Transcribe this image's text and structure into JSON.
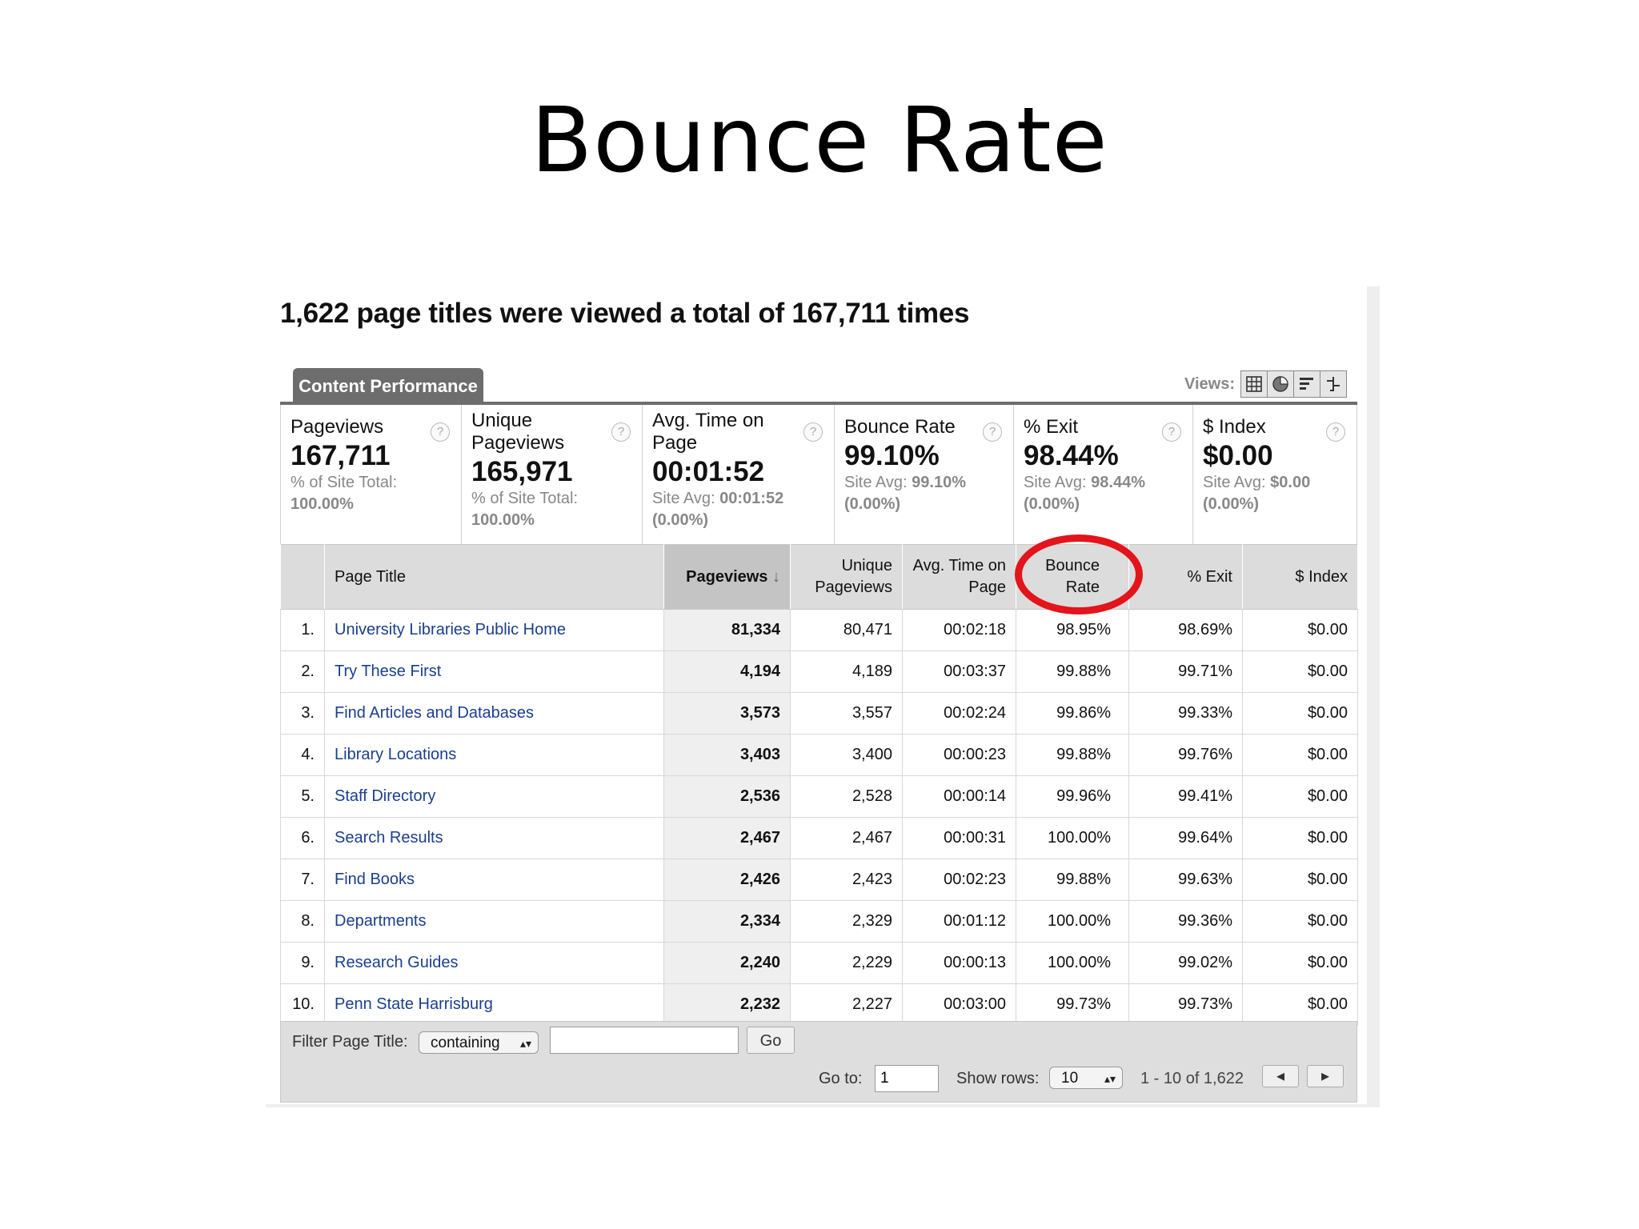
{
  "slide": {
    "title": "Bounce Rate"
  },
  "report": {
    "headline": "1,622 page titles were viewed a total of 167,711 times",
    "tab_label": "Content Performance",
    "views_label": "Views:",
    "view_icons": [
      "table-view-icon",
      "pie-view-icon",
      "bar-view-icon",
      "pivot-view-icon"
    ]
  },
  "summary": [
    {
      "label": "Pageviews",
      "value": "167,711",
      "sub1": "% of Site Total:",
      "sub2": "100.00%"
    },
    {
      "label": "Unique Pageviews",
      "value": "165,971",
      "sub1": "% of Site Total:",
      "sub2": "100.00%"
    },
    {
      "label": "Avg. Time on Page",
      "value": "00:01:52",
      "sub1": "Site Avg:",
      "sub1b": "00:01:52",
      "sub2": "(0.00%)"
    },
    {
      "label": "Bounce Rate",
      "value": "99.10%",
      "sub1": "Site Avg:",
      "sub1b": "99.10%",
      "sub2": "(0.00%)"
    },
    {
      "label": "% Exit",
      "value": "98.44%",
      "sub1": "Site Avg:",
      "sub1b": "98.44%",
      "sub2": "(0.00%)"
    },
    {
      "label": "$ Index",
      "value": "$0.00",
      "sub1": "Site Avg:",
      "sub1b": "$0.00",
      "sub2": "(0.00%)"
    }
  ],
  "help_glyph": "?",
  "table": {
    "headers": {
      "page_title": "Page Title",
      "pageviews": "Pageviews",
      "sort_arrow": "↓",
      "unique_pageviews": "Unique Pageviews",
      "avg_time": "Avg. Time on Page",
      "bounce_rate": "Bounce Rate",
      "exit": "% Exit",
      "index": "$ Index"
    },
    "rows": [
      {
        "n": "1.",
        "title": "University Libraries Public Home",
        "pv": "81,334",
        "upv": "80,471",
        "time": "00:02:18",
        "bounce": "98.95%",
        "exit": "98.69%",
        "index": "$0.00"
      },
      {
        "n": "2.",
        "title": "Try These First",
        "pv": "4,194",
        "upv": "4,189",
        "time": "00:03:37",
        "bounce": "99.88%",
        "exit": "99.71%",
        "index": "$0.00"
      },
      {
        "n": "3.",
        "title": "Find Articles and Databases",
        "pv": "3,573",
        "upv": "3,557",
        "time": "00:02:24",
        "bounce": "99.86%",
        "exit": "99.33%",
        "index": "$0.00"
      },
      {
        "n": "4.",
        "title": "Library Locations",
        "pv": "3,403",
        "upv": "3,400",
        "time": "00:00:23",
        "bounce": "99.88%",
        "exit": "99.76%",
        "index": "$0.00"
      },
      {
        "n": "5.",
        "title": "Staff Directory",
        "pv": "2,536",
        "upv": "2,528",
        "time": "00:00:14",
        "bounce": "99.96%",
        "exit": "99.41%",
        "index": "$0.00"
      },
      {
        "n": "6.",
        "title": "Search Results",
        "pv": "2,467",
        "upv": "2,467",
        "time": "00:00:31",
        "bounce": "100.00%",
        "exit": "99.64%",
        "index": "$0.00"
      },
      {
        "n": "7.",
        "title": "Find Books",
        "pv": "2,426",
        "upv": "2,423",
        "time": "00:02:23",
        "bounce": "99.88%",
        "exit": "99.63%",
        "index": "$0.00"
      },
      {
        "n": "8.",
        "title": "Departments",
        "pv": "2,334",
        "upv": "2,329",
        "time": "00:01:12",
        "bounce": "100.00%",
        "exit": "99.36%",
        "index": "$0.00"
      },
      {
        "n": "9.",
        "title": "Research Guides",
        "pv": "2,240",
        "upv": "2,229",
        "time": "00:00:13",
        "bounce": "100.00%",
        "exit": "99.02%",
        "index": "$0.00"
      },
      {
        "n": "10.",
        "title": "Penn State Harrisburg",
        "pv": "2,232",
        "upv": "2,227",
        "time": "00:03:00",
        "bounce": "99.73%",
        "exit": "99.73%",
        "index": "$0.00"
      }
    ]
  },
  "footer": {
    "filter_label": "Filter Page Title:",
    "filter_mode": "containing",
    "filter_value": "",
    "go_label": "Go",
    "goto_label": "Go to:",
    "goto_value": "1",
    "show_rows_label": "Show rows:",
    "show_rows_value": "10",
    "range_text": "1 - 10 of 1,622",
    "prev_glyph": "◂",
    "next_glyph": "▸",
    "select_arrows": "▴▾"
  },
  "colors": {
    "highlight": "#e3141b",
    "link": "#1a3f8f",
    "tab": "#6d6d6d"
  }
}
